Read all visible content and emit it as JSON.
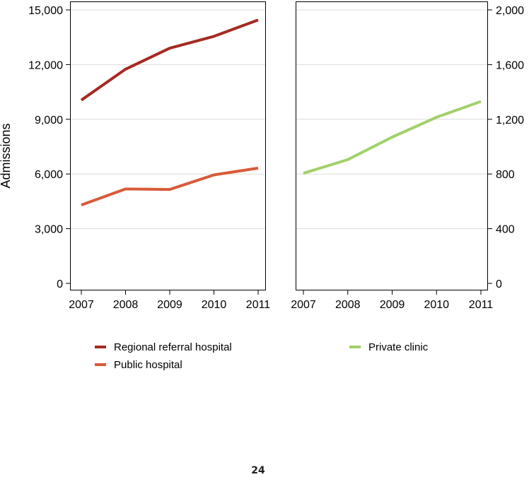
{
  "chart_data": [
    {
      "type": "line",
      "panel": "left",
      "ylabel": "Admissions",
      "xlabel": "",
      "x": [
        2007,
        2008,
        2009,
        2010,
        2011
      ],
      "x_tick_labels": [
        "2007",
        "2008",
        "2009",
        "2010",
        "2011"
      ],
      "ylim": [
        0,
        15000
      ],
      "y_ticks": [
        0,
        3000,
        6000,
        9000,
        12000,
        15000
      ],
      "y_tick_labels": [
        "0",
        "3,000",
        "6,000",
        "9,000",
        "12,000",
        "15,000"
      ],
      "y_axis_side": "left",
      "grid": true,
      "series": [
        {
          "name": "Regional referral hospital",
          "color": "#a52a22",
          "values": [
            10050,
            11750,
            12900,
            13550,
            14450
          ]
        },
        {
          "name": "Public hospital",
          "color": "#d95a38",
          "values": [
            4300,
            5180,
            5150,
            5950,
            6320
          ]
        }
      ]
    },
    {
      "type": "line",
      "panel": "right",
      "xlabel": "",
      "x": [
        2007,
        2008,
        2009,
        2010,
        2011
      ],
      "x_tick_labels": [
        "2007",
        "2008",
        "2009",
        "2010",
        "2011"
      ],
      "ylim": [
        0,
        2000
      ],
      "y_ticks": [
        0,
        400,
        800,
        1200,
        1600,
        2000
      ],
      "y_tick_labels": [
        "0",
        "400",
        "800",
        "1,200",
        "1,600",
        "2,000"
      ],
      "y_axis_side": "right",
      "grid": true,
      "series": [
        {
          "name": "Private clinic",
          "color": "#a3d06b",
          "values": [
            805,
            905,
            1070,
            1215,
            1330
          ]
        }
      ]
    }
  ],
  "legend": {
    "placement": "bottom",
    "left": [
      "Regional referral hospital",
      "Public hospital"
    ],
    "right": [
      "Private clinic"
    ]
  },
  "page": {
    "number": "24"
  }
}
